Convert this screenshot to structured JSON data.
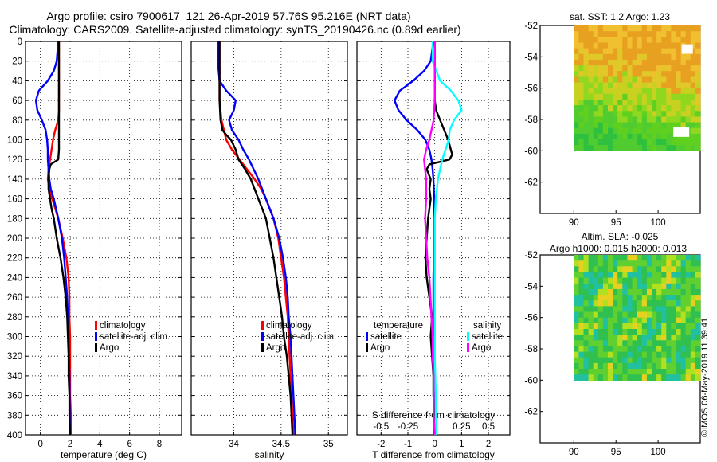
{
  "header": {
    "line1": "Argo profile: csiro 7900617_121 26-Apr-2019 57.76S 95.216E (NRT data)",
    "line2": "Climatology: CARS2009. Satellite-adjusted climatology: synTS_20190426.nc (0.89d earlier)"
  },
  "credit": "©IMOS 06-May-2019 11:39:41",
  "colors": {
    "climatology": "#ff0000",
    "satellite": "#0000ff",
    "argo": "#000000",
    "satellite_s": "#00ffff",
    "argo_s": "#ff00ff"
  },
  "chart_data": [
    {
      "name": "temperature",
      "type": "line",
      "xlabel": "temperature (deg C)",
      "ylabel": "",
      "xlim": [
        -1,
        9.5
      ],
      "ylim": [
        400,
        0
      ],
      "xticks": [
        0,
        2,
        4,
        6,
        8
      ],
      "yticks": [
        0,
        20,
        40,
        60,
        80,
        100,
        120,
        140,
        160,
        180,
        200,
        220,
        240,
        260,
        280,
        300,
        320,
        340,
        360,
        380,
        400
      ],
      "legend": [
        "climatology",
        "satellite-adj. clim.",
        "Argo"
      ],
      "series": [
        {
          "name": "climatology",
          "color": "#ff0000",
          "depth": [
            0,
            20,
            40,
            60,
            70,
            80,
            90,
            100,
            110,
            120,
            130,
            140,
            150,
            160,
            180,
            200,
            220,
            240,
            260,
            280,
            300,
            320,
            340,
            360,
            380,
            400
          ],
          "values": [
            1.25,
            1.25,
            1.25,
            1.25,
            1.25,
            1.2,
            1.0,
            0.85,
            0.75,
            0.65,
            0.55,
            0.5,
            0.6,
            0.8,
            1.2,
            1.5,
            1.75,
            1.9,
            1.95,
            1.95,
            2.0,
            2.0,
            2.0,
            2.0,
            2.05,
            2.05
          ]
        },
        {
          "name": "satellite-adj. clim.",
          "color": "#0000ff",
          "depth": [
            0,
            20,
            30,
            40,
            50,
            60,
            70,
            80,
            90,
            100,
            110,
            120,
            130,
            140,
            150,
            160,
            180,
            200,
            220,
            240,
            260,
            280,
            300,
            320,
            340,
            360,
            380,
            400
          ],
          "values": [
            1.2,
            1.1,
            0.9,
            0.5,
            -0.1,
            -0.3,
            -0.2,
            0.1,
            0.35,
            0.45,
            0.5,
            0.5,
            0.55,
            0.6,
            0.7,
            0.9,
            1.2,
            1.45,
            1.6,
            1.7,
            1.8,
            1.85,
            1.9,
            1.92,
            1.95,
            1.97,
            1.98,
            2.0
          ]
        },
        {
          "name": "Argo",
          "color": "#000000",
          "depth": [
            0,
            20,
            40,
            60,
            80,
            100,
            110,
            120,
            125,
            130,
            140,
            150,
            160,
            170,
            180,
            200,
            220,
            240,
            260,
            280,
            300,
            320,
            340,
            360,
            380,
            400
          ],
          "values": [
            1.25,
            1.25,
            1.25,
            1.25,
            1.25,
            1.25,
            1.25,
            1.2,
            0.7,
            0.6,
            0.55,
            0.55,
            0.65,
            0.75,
            0.9,
            1.1,
            1.35,
            1.55,
            1.7,
            1.8,
            1.85,
            1.9,
            1.9,
            1.95,
            1.95,
            2.0
          ]
        }
      ]
    },
    {
      "name": "salinity",
      "type": "line",
      "xlabel": "salinity",
      "xlim": [
        33.55,
        35.2
      ],
      "ylim": [
        400,
        0
      ],
      "xticks": [
        34,
        34.5,
        35
      ],
      "legend": [
        "climatology",
        "satellite-adj. clim.",
        "Argo"
      ],
      "series": [
        {
          "name": "climatology",
          "color": "#ff0000",
          "depth": [
            0,
            20,
            40,
            60,
            80,
            100,
            110,
            120,
            130,
            140,
            150,
            160,
            170,
            180,
            200,
            220,
            240,
            260,
            280,
            300,
            320,
            340,
            360,
            380,
            400
          ],
          "values": [
            33.85,
            33.85,
            33.85,
            33.85,
            33.87,
            33.92,
            33.98,
            34.06,
            34.14,
            34.22,
            34.29,
            34.34,
            34.38,
            34.42,
            34.47,
            34.5,
            34.53,
            34.55,
            34.57,
            34.58,
            34.59,
            34.6,
            34.61,
            34.62,
            34.63
          ]
        },
        {
          "name": "satellite-adj. clim.",
          "color": "#0000ff",
          "depth": [
            0,
            20,
            40,
            50,
            60,
            70,
            80,
            90,
            100,
            110,
            120,
            130,
            140,
            150,
            160,
            180,
            200,
            220,
            240,
            260,
            280,
            300,
            320,
            340,
            360,
            380,
            400
          ],
          "values": [
            33.83,
            33.83,
            33.85,
            33.92,
            34.02,
            34.0,
            33.95,
            33.98,
            34.05,
            34.1,
            34.16,
            34.21,
            34.26,
            34.3,
            34.34,
            34.42,
            34.48,
            34.52,
            34.55,
            34.57,
            34.58,
            34.6,
            34.61,
            34.62,
            34.63,
            34.64,
            34.65
          ]
        },
        {
          "name": "Argo",
          "color": "#000000",
          "depth": [
            0,
            20,
            40,
            60,
            80,
            90,
            95,
            100,
            110,
            120,
            130,
            140,
            150,
            160,
            170,
            180,
            200,
            220,
            240,
            260,
            280,
            300,
            320,
            340,
            360,
            380,
            400
          ],
          "values": [
            33.85,
            33.85,
            33.85,
            33.85,
            33.86,
            33.88,
            33.92,
            33.97,
            34.02,
            34.05,
            34.12,
            34.18,
            34.22,
            34.26,
            34.3,
            34.34,
            34.38,
            34.42,
            34.45,
            34.48,
            34.51,
            34.53,
            34.56,
            34.58,
            34.6,
            34.61,
            34.62
          ]
        }
      ]
    },
    {
      "name": "difference",
      "type": "line",
      "xlabel": "T difference from climatology",
      "x2label": "S difference from climatology",
      "xlim": [
        -2.9,
        2.8
      ],
      "ylim": [
        400,
        0
      ],
      "xticks": [
        -2,
        -1,
        0,
        1,
        2
      ],
      "x2ticks": [
        "-0.5",
        "-0.25",
        "0",
        "0.25",
        "0.5"
      ],
      "legend_title_t": "temperature",
      "legend_title_s": "salinity",
      "legend_t": [
        "satellite",
        "Argo"
      ],
      "legend_s": [
        "satellite",
        "Argo"
      ],
      "series": [
        {
          "name": "T satellite",
          "color": "#0000ff",
          "depth": [
            0,
            20,
            30,
            40,
            50,
            60,
            70,
            80,
            90,
            100,
            110,
            120,
            130,
            140,
            160,
            200,
            240,
            280,
            320,
            360,
            400
          ],
          "values": [
            -0.05,
            -0.15,
            -0.4,
            -0.8,
            -1.3,
            -1.5,
            -1.35,
            -1.05,
            -0.65,
            -0.35,
            -0.2,
            -0.12,
            -0.08,
            -0.05,
            -0.02,
            -0.02,
            -0.05,
            -0.05,
            -0.05,
            -0.03,
            -0.02
          ]
        },
        {
          "name": "T Argo",
          "color": "#000000",
          "depth": [
            0,
            20,
            40,
            60,
            70,
            80,
            90,
            100,
            110,
            115,
            120,
            125,
            130,
            140,
            150,
            160,
            180,
            200,
            220,
            240,
            260,
            280,
            300,
            320,
            340,
            360,
            380,
            400
          ],
          "values": [
            0,
            0,
            0,
            0,
            0.05,
            0.2,
            0.35,
            0.5,
            0.6,
            0.65,
            0.55,
            -0.2,
            -0.3,
            -0.15,
            -0.2,
            -0.15,
            -0.25,
            -0.3,
            -0.35,
            -0.3,
            -0.2,
            -0.1,
            -0.15,
            -0.1,
            -0.05,
            -0.05,
            0,
            0
          ]
        },
        {
          "name": "S satellite",
          "color": "#00ffff",
          "depth": [
            0,
            20,
            40,
            50,
            60,
            70,
            80,
            90,
            100,
            110,
            120,
            140,
            160,
            180,
            200,
            240,
            280,
            320,
            360,
            400
          ],
          "values": [
            -0.02,
            -0.02,
            0.05,
            0.15,
            0.22,
            0.25,
            0.18,
            0.14,
            0.13,
            0.1,
            0.07,
            0.03,
            0.01,
            0.0,
            0.0,
            0.0,
            0.0,
            0.0,
            0.01,
            0.01
          ]
        },
        {
          "name": "S Argo",
          "color": "#ff00ff",
          "depth": [
            0,
            20,
            40,
            60,
            80,
            100,
            110,
            120,
            130,
            140,
            160,
            180,
            200,
            220,
            240,
            260,
            280,
            300,
            320,
            340,
            360,
            380,
            400
          ],
          "values": [
            0.0,
            0.0,
            0.0,
            0.0,
            -0.01,
            -0.05,
            -0.08,
            -0.1,
            -0.09,
            -0.08,
            -0.08,
            -0.09,
            -0.08,
            -0.07,
            -0.05,
            -0.04,
            -0.03,
            -0.02,
            -0.02,
            -0.01,
            -0.01,
            -0.01,
            0.0
          ]
        }
      ]
    },
    {
      "name": "sst_map",
      "type": "heatmap",
      "title": "sat. SST: 1.2 Argo: 1.23",
      "xlim": [
        86,
        105
      ],
      "ylim": [
        -64,
        -52
      ],
      "xticks": [
        90,
        95,
        100
      ],
      "yticks": [
        -52,
        -54,
        -56,
        -58,
        -60,
        -62
      ]
    },
    {
      "name": "sla_map",
      "type": "heatmap",
      "title": "Altim. SLA: -0.025",
      "subtitle": "Argo h1000: 0.015 h2000: 0.013",
      "xlim": [
        86,
        105
      ],
      "ylim": [
        -64,
        -52
      ],
      "xticks": [
        90,
        95,
        100
      ],
      "yticks": [
        -52,
        -54,
        -56,
        -58,
        -60,
        -62
      ]
    }
  ]
}
